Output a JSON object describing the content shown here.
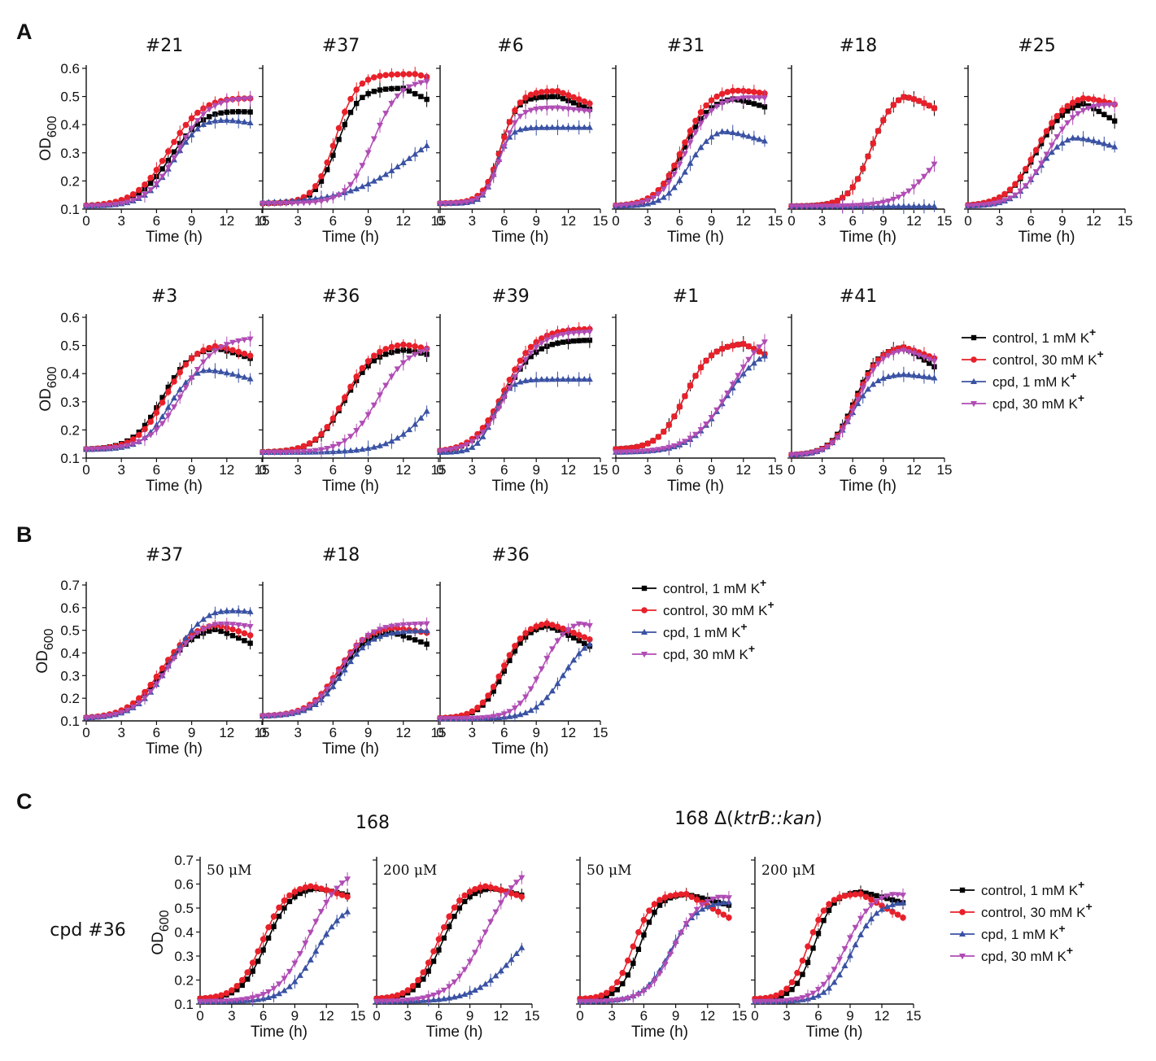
{
  "chart_data": {
    "type": "line",
    "colors": {
      "control_1mM": "#000000",
      "control_30mM": "#e8202a",
      "cpd_1mM": "#3a52a3",
      "cpd_30mM": "#b04cb4"
    },
    "x_ticks": [
      0,
      3,
      6,
      9,
      12,
      15
    ],
    "xlabel": "Time (h)",
    "legend_labels": [
      "control, 1 mM K",
      "control, 30 mM K",
      "cpd, 1 mM K",
      "cpd, 30 mM K"
    ],
    "legend_superscript": "+",
    "panels": [
      {
        "letter": "A",
        "titles_row1": [
          "#21",
          "#37",
          "#6",
          "#31",
          "#18",
          "#25"
        ],
        "titles_row2": [
          "#3",
          "#36",
          "#39",
          "#1",
          "#41"
        ],
        "ylabel": "OD",
        "ylabel_sub": "600",
        "y_ticks": [
          "0.6",
          "0.5",
          "0.4",
          "0.3",
          "0.2",
          "0.1"
        ],
        "ylim": [
          0.1,
          0.6
        ]
      },
      {
        "letter": "B",
        "titles": [
          "#37",
          "#18",
          "#36"
        ],
        "ylabel": "OD",
        "ylabel_sub": "600",
        "y_ticks": [
          "0.7",
          "0.6",
          "0.5",
          "0.4",
          "0.3",
          "0.2",
          "0.1"
        ],
        "ylim": [
          0.1,
          0.7
        ]
      },
      {
        "letter": "C",
        "group_titles": [
          "168",
          "168 Δ(",
          "ktrB::kan",
          ")"
        ],
        "row_label": "cpd #36",
        "concentrations": [
          "50 μM",
          "200 μM",
          "50 μM",
          "200 μM"
        ],
        "ylabel": "OD",
        "ylabel_sub": "600",
        "y_ticks": [
          "0.7",
          "0.6",
          "0.5",
          "0.4",
          "0.3",
          "0.2",
          "0.1"
        ],
        "ylim": [
          0.1,
          0.7
        ]
      }
    ],
    "curve_params_note": "Logistic curves OD(t) = base + amp/(1+exp(-k(t-mid))) - decline*max(0,t-dstart); series order: control 1 mM, control 30 mM, cpd 1 mM, cpd 30 mM",
    "subplots": [
      {
        "id": "A-21",
        "series": [
          {
            "b": 0.11,
            "a": 0.35,
            "m": 7.2,
            "k": 0.7,
            "d": 0.004,
            "s": 11
          },
          {
            "b": 0.11,
            "a": 0.39,
            "m": 7.0,
            "k": 0.7,
            "d": 0.002,
            "s": 12
          },
          {
            "b": 0.11,
            "a": 0.33,
            "m": 7.5,
            "k": 0.8,
            "d": 0.008,
            "s": 10
          },
          {
            "b": 0.11,
            "a": 0.39,
            "m": 7.8,
            "k": 0.75,
            "d": 0.002,
            "s": 12
          }
        ]
      },
      {
        "id": "A-37",
        "series": [
          {
            "b": 0.12,
            "a": 0.41,
            "m": 6.3,
            "k": 1.1,
            "d": 0.02,
            "s": 12
          },
          {
            "b": 0.12,
            "a": 0.46,
            "m": 6.2,
            "k": 1.1,
            "d": 0.01,
            "s": 13
          },
          {
            "b": 0.12,
            "a": 0.35,
            "m": 13,
            "k": 0.35,
            "d": 0,
            "s": 99
          },
          {
            "b": 0.12,
            "a": 0.44,
            "m": 9.4,
            "k": 0.9,
            "d": 0,
            "s": 99
          }
        ]
      },
      {
        "id": "A-6",
        "series": [
          {
            "b": 0.12,
            "a": 0.38,
            "m": 5.6,
            "k": 1.3,
            "d": 0.015,
            "s": 11
          },
          {
            "b": 0.12,
            "a": 0.4,
            "m": 5.7,
            "k": 1.2,
            "d": 0.015,
            "s": 11
          },
          {
            "b": 0.12,
            "a": 0.27,
            "m": 5.3,
            "k": 1.6,
            "d": 0,
            "s": 99
          },
          {
            "b": 0.12,
            "a": 0.34,
            "m": 5.7,
            "k": 1.3,
            "d": 0.004,
            "s": 11
          }
        ]
      },
      {
        "id": "A-31",
        "series": [
          {
            "b": 0.11,
            "a": 0.39,
            "m": 6.3,
            "k": 0.8,
            "d": 0.012,
            "s": 11
          },
          {
            "b": 0.11,
            "a": 0.42,
            "m": 6.3,
            "k": 0.8,
            "d": 0.006,
            "s": 11
          },
          {
            "b": 0.11,
            "a": 0.28,
            "m": 6.8,
            "k": 0.9,
            "d": 0.012,
            "s": 10
          },
          {
            "b": 0.11,
            "a": 0.39,
            "m": 6.6,
            "k": 0.8,
            "d": 0.002,
            "s": 12
          }
        ]
      },
      {
        "id": "A-18",
        "series": [
          {
            "b": 0.11,
            "a": 0.41,
            "m": 7.8,
            "k": 0.9,
            "d": 0.02,
            "s": 11
          },
          {
            "b": 0.11,
            "a": 0.41,
            "m": 7.8,
            "k": 0.9,
            "d": 0.02,
            "s": 11
          },
          {
            "b": 0.11,
            "a": 0.0,
            "m": 10,
            "k": 1,
            "d": 0,
            "s": 99
          },
          {
            "b": 0.11,
            "a": 0.3,
            "m": 14,
            "k": 0.6,
            "d": 0,
            "s": 99
          }
        ]
      },
      {
        "id": "A-25",
        "series": [
          {
            "b": 0.11,
            "a": 0.38,
            "m": 6.5,
            "k": 0.7,
            "d": 0.025,
            "s": 11
          },
          {
            "b": 0.11,
            "a": 0.4,
            "m": 6.5,
            "k": 0.7,
            "d": 0.012,
            "s": 11
          },
          {
            "b": 0.11,
            "a": 0.26,
            "m": 6.7,
            "k": 0.8,
            "d": 0.012,
            "s": 10
          },
          {
            "b": 0.11,
            "a": 0.37,
            "m": 7.5,
            "k": 0.7,
            "d": 0.003,
            "s": 12
          }
        ]
      },
      {
        "id": "B-3",
        "series": [
          {
            "b": 0.13,
            "a": 0.37,
            "m": 6.5,
            "k": 0.8,
            "d": 0.015,
            "s": 11
          },
          {
            "b": 0.13,
            "a": 0.38,
            "m": 6.8,
            "k": 0.8,
            "d": 0.015,
            "s": 11
          },
          {
            "b": 0.13,
            "a": 0.3,
            "m": 7.0,
            "k": 0.9,
            "d": 0.012,
            "s": 10
          },
          {
            "b": 0.13,
            "a": 0.4,
            "m": 8.2,
            "k": 0.7,
            "d": 0,
            "s": 99
          }
        ]
      },
      {
        "id": "B-36",
        "series": [
          {
            "b": 0.12,
            "a": 0.37,
            "m": 7.0,
            "k": 0.8,
            "d": 0.01,
            "s": 12
          },
          {
            "b": 0.12,
            "a": 0.39,
            "m": 7.0,
            "k": 0.8,
            "d": 0.01,
            "s": 12
          },
          {
            "b": 0.12,
            "a": 0.4,
            "m": 15,
            "k": 0.55,
            "d": 0,
            "s": 99
          },
          {
            "b": 0.12,
            "a": 0.38,
            "m": 9.8,
            "k": 0.75,
            "d": 0,
            "s": 99
          }
        ]
      },
      {
        "id": "B-39",
        "series": [
          {
            "b": 0.12,
            "a": 0.4,
            "m": 6.0,
            "k": 0.7,
            "d": 0,
            "s": 99
          },
          {
            "b": 0.12,
            "a": 0.44,
            "m": 6.0,
            "k": 0.7,
            "d": 0,
            "s": 99
          },
          {
            "b": 0.12,
            "a": 0.26,
            "m": 5.0,
            "k": 1.3,
            "d": 0,
            "s": 99
          },
          {
            "b": 0.12,
            "a": 0.43,
            "m": 6.3,
            "k": 0.7,
            "d": 0,
            "s": 99
          }
        ]
      },
      {
        "id": "B-1",
        "series": [
          {
            "b": 0.13,
            "a": 0.38,
            "m": 6.5,
            "k": 0.8,
            "d": 0.02,
            "s": 12
          },
          {
            "b": 0.13,
            "a": 0.38,
            "m": 6.5,
            "k": 0.8,
            "d": 0.02,
            "s": 12
          },
          {
            "b": 0.12,
            "a": 0.38,
            "m": 10.3,
            "k": 0.6,
            "d": 0,
            "s": 99
          },
          {
            "b": 0.12,
            "a": 0.46,
            "m": 10.8,
            "k": 0.55,
            "d": 0,
            "s": 99
          }
        ]
      },
      {
        "id": "B-41",
        "series": [
          {
            "b": 0.11,
            "a": 0.39,
            "m": 6.2,
            "k": 0.85,
            "d": 0.025,
            "s": 11
          },
          {
            "b": 0.11,
            "a": 0.39,
            "m": 6.3,
            "k": 0.85,
            "d": 0.015,
            "s": 11
          },
          {
            "b": 0.11,
            "a": 0.29,
            "m": 5.9,
            "k": 0.9,
            "d": 0.005,
            "s": 11
          },
          {
            "b": 0.11,
            "a": 0.38,
            "m": 6.4,
            "k": 0.85,
            "d": 0.015,
            "s": 11
          }
        ]
      },
      {
        "id": "C-37",
        "series": [
          {
            "b": 0.11,
            "a": 0.41,
            "m": 6.5,
            "k": 0.7,
            "d": 0.025,
            "s": 11
          },
          {
            "b": 0.11,
            "a": 0.43,
            "m": 6.4,
            "k": 0.7,
            "d": 0.02,
            "s": 11
          },
          {
            "b": 0.11,
            "a": 0.5,
            "m": 7.2,
            "k": 0.7,
            "d": 0.008,
            "s": 11
          },
          {
            "b": 0.11,
            "a": 0.44,
            "m": 6.9,
            "k": 0.7,
            "d": 0.01,
            "s": 11
          }
        ]
      },
      {
        "id": "C-18",
        "series": [
          {
            "b": 0.12,
            "a": 0.38,
            "m": 6.5,
            "k": 0.8,
            "d": 0.02,
            "s": 11
          },
          {
            "b": 0.12,
            "a": 0.4,
            "m": 6.4,
            "k": 0.8,
            "d": 0.01,
            "s": 11
          },
          {
            "b": 0.12,
            "a": 0.38,
            "m": 6.8,
            "k": 0.8,
            "d": 0,
            "s": 99
          },
          {
            "b": 0.12,
            "a": 0.41,
            "m": 6.6,
            "k": 0.8,
            "d": 0,
            "s": 99
          }
        ]
      },
      {
        "id": "C-36",
        "series": [
          {
            "b": 0.11,
            "a": 0.42,
            "m": 6.0,
            "k": 0.9,
            "d": 0.025,
            "s": 10
          },
          {
            "b": 0.11,
            "a": 0.43,
            "m": 5.8,
            "k": 0.9,
            "d": 0.02,
            "s": 10
          },
          {
            "b": 0.11,
            "a": 0.38,
            "m": 11.5,
            "k": 0.75,
            "d": 0,
            "s": 99
          },
          {
            "b": 0.11,
            "a": 0.44,
            "m": 9.5,
            "k": 0.85,
            "d": 0.02,
            "s": 13
          }
        ]
      },
      {
        "id": "D-168-50",
        "series": [
          {
            "b": 0.12,
            "a": 0.47,
            "m": 6.3,
            "k": 0.85,
            "d": 0.012,
            "s": 11
          },
          {
            "b": 0.12,
            "a": 0.48,
            "m": 5.9,
            "k": 0.85,
            "d": 0.015,
            "s": 10.5
          },
          {
            "b": 0.11,
            "a": 0.42,
            "m": 11.0,
            "k": 0.7,
            "d": 0,
            "s": 99
          },
          {
            "b": 0.11,
            "a": 0.56,
            "m": 10.4,
            "k": 0.65,
            "d": 0,
            "s": 99
          }
        ]
      },
      {
        "id": "D-168-200",
        "series": [
          {
            "b": 0.12,
            "a": 0.47,
            "m": 6.3,
            "k": 0.85,
            "d": 0.012,
            "s": 11
          },
          {
            "b": 0.12,
            "a": 0.48,
            "m": 5.9,
            "k": 0.85,
            "d": 0.015,
            "s": 10.5
          },
          {
            "b": 0.11,
            "a": 0.4,
            "m": 13.5,
            "k": 0.5,
            "d": 0,
            "s": 99
          },
          {
            "b": 0.11,
            "a": 0.58,
            "m": 10.5,
            "k": 0.6,
            "d": 0,
            "s": 99
          }
        ]
      },
      {
        "id": "D-ktr-50",
        "series": [
          {
            "b": 0.12,
            "a": 0.44,
            "m": 5.6,
            "k": 1.1,
            "d": 0.012,
            "s": 10
          },
          {
            "b": 0.12,
            "a": 0.44,
            "m": 5.0,
            "k": 1.1,
            "d": 0.025,
            "s": 10
          },
          {
            "b": 0.11,
            "a": 0.42,
            "m": 8.5,
            "k": 0.8,
            "d": 0,
            "s": 99
          },
          {
            "b": 0.11,
            "a": 0.45,
            "m": 8.8,
            "k": 0.8,
            "d": 0.01,
            "s": 13
          }
        ]
      },
      {
        "id": "D-ktr-200",
        "series": [
          {
            "b": 0.12,
            "a": 0.45,
            "m": 5.6,
            "k": 1.1,
            "d": 0.012,
            "s": 10
          },
          {
            "b": 0.12,
            "a": 0.44,
            "m": 5.0,
            "k": 1.1,
            "d": 0.025,
            "s": 10
          },
          {
            "b": 0.11,
            "a": 0.42,
            "m": 9.2,
            "k": 0.85,
            "d": 0,
            "s": 99
          },
          {
            "b": 0.11,
            "a": 0.46,
            "m": 8.6,
            "k": 0.8,
            "d": 0.01,
            "s": 13
          }
        ]
      }
    ]
  }
}
